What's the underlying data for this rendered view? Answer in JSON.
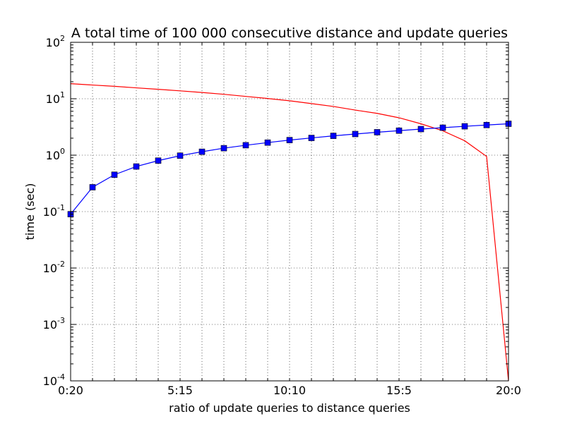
{
  "chart_data": {
    "type": "line",
    "title": "A total time of 100 000 consecutive distance and update queries",
    "xlabel": "ratio of update queries to distance queries",
    "ylabel": "time (sec)",
    "x": [
      0,
      1,
      2,
      3,
      4,
      5,
      6,
      7,
      8,
      9,
      10,
      11,
      12,
      13,
      14,
      15,
      16,
      17,
      18,
      19,
      20
    ],
    "xlim": [
      0,
      20
    ],
    "ylim": [
      0.0001,
      100
    ],
    "yscale": "log",
    "grid": true,
    "x_ticks": [
      {
        "x": 0,
        "label": "0:20"
      },
      {
        "x": 5,
        "label": "5:15"
      },
      {
        "x": 10,
        "label": "10:10"
      },
      {
        "x": 15,
        "label": "15:5"
      },
      {
        "x": 20,
        "label": "20:0"
      }
    ],
    "y_ticks": [
      {
        "y": 0.0001,
        "base": "10",
        "exp": "-4"
      },
      {
        "y": 0.001,
        "base": "10",
        "exp": "-3"
      },
      {
        "y": 0.01,
        "base": "10",
        "exp": "-2"
      },
      {
        "y": 0.1,
        "base": "10",
        "exp": "-1"
      },
      {
        "y": 1,
        "base": "10",
        "exp": "0"
      },
      {
        "y": 10,
        "base": "10",
        "exp": "1"
      },
      {
        "y": 100,
        "base": "10",
        "exp": "2"
      }
    ],
    "series": [
      {
        "color": "#ff0000",
        "marker": "none",
        "values": [
          18.5,
          17.5,
          16.6,
          15.6,
          14.7,
          13.8,
          12.9,
          12.0,
          11.0,
          10.1,
          9.2,
          8.2,
          7.3,
          6.3,
          5.5,
          4.6,
          3.6,
          2.7,
          1.8,
          0.95,
          0.0001
        ]
      },
      {
        "color": "#0000ff",
        "marker": "square",
        "values": [
          0.09,
          0.27,
          0.45,
          0.63,
          0.8,
          0.98,
          1.15,
          1.33,
          1.5,
          1.67,
          1.85,
          2.02,
          2.2,
          2.37,
          2.55,
          2.72,
          2.9,
          3.07,
          3.25,
          3.42,
          3.6
        ]
      }
    ]
  }
}
